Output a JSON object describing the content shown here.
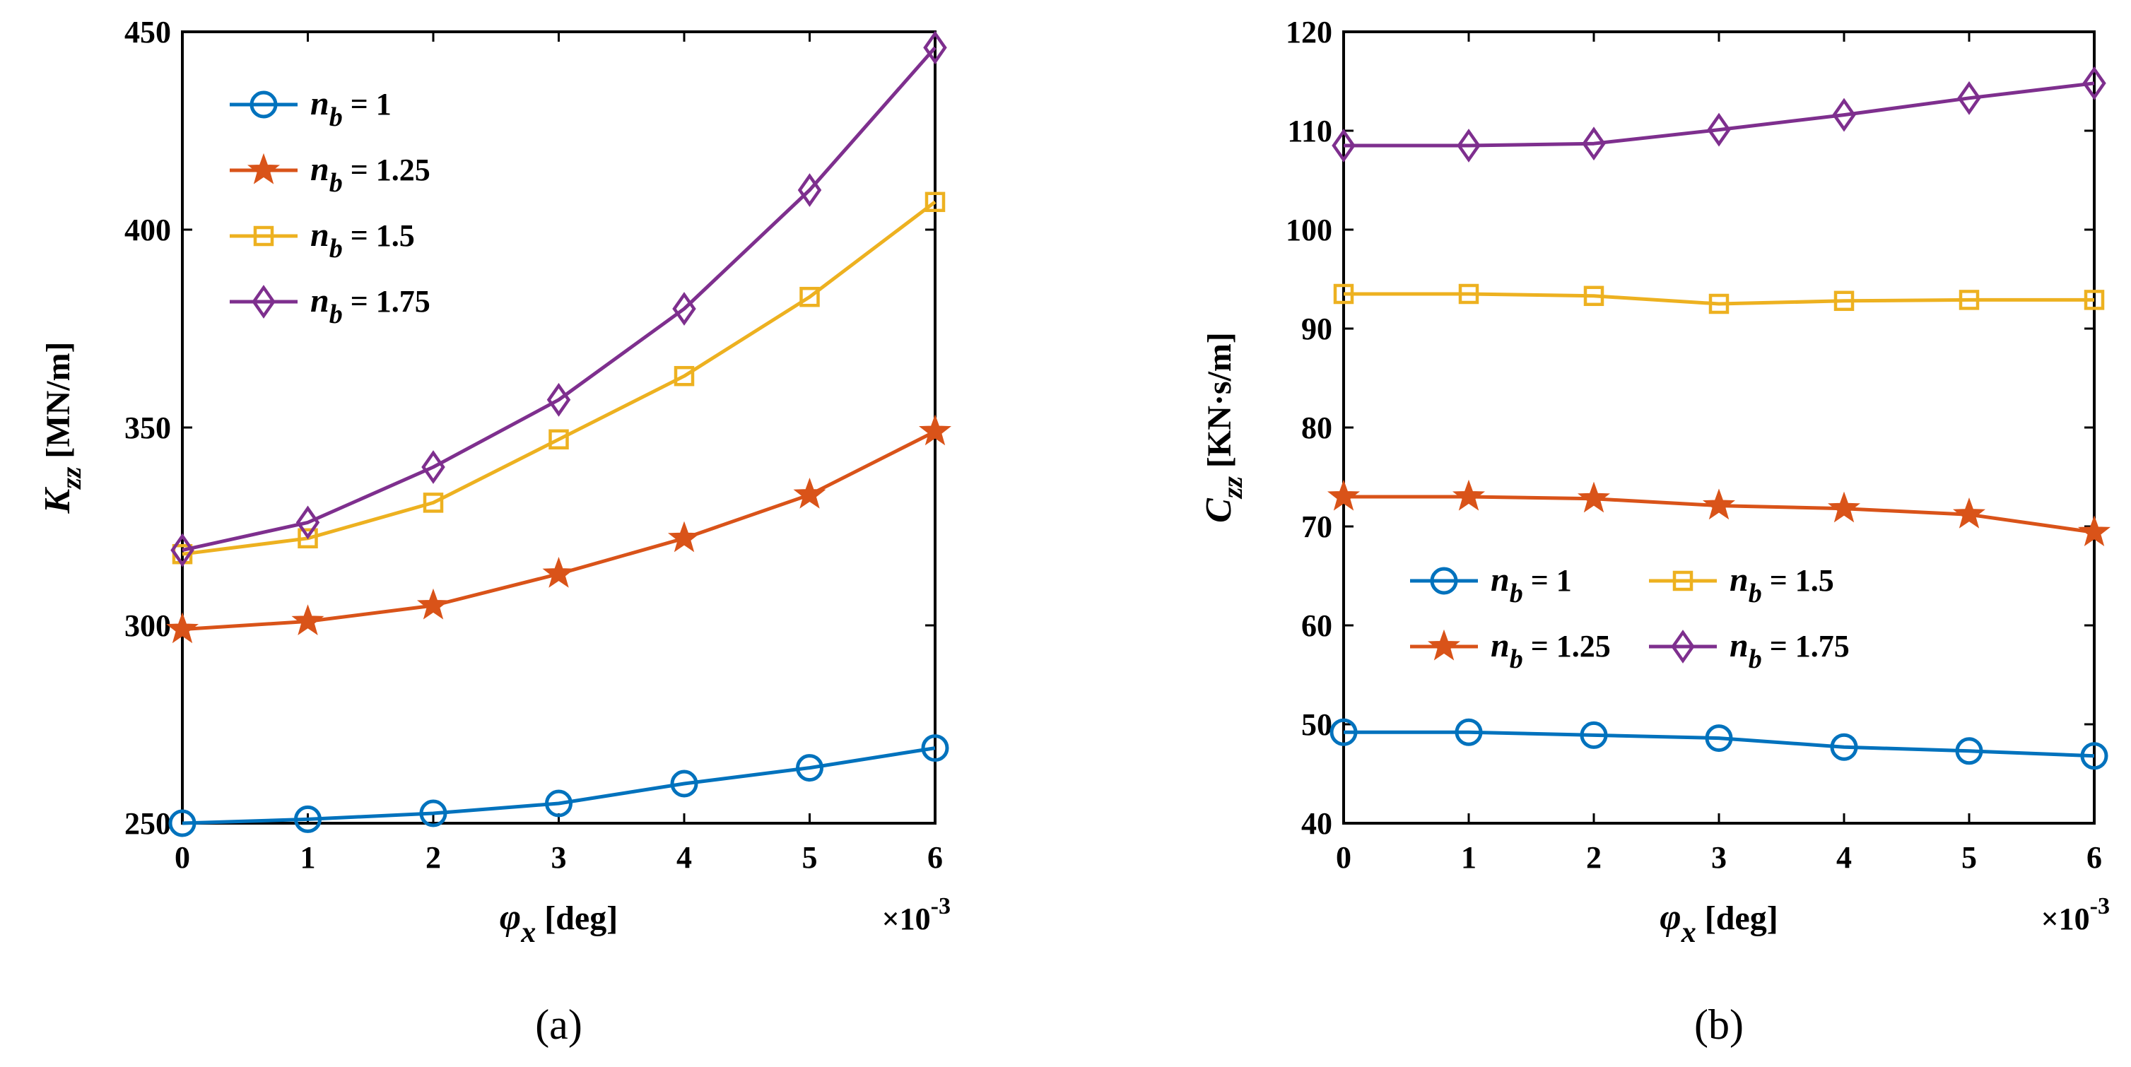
{
  "chart_data": [
    {
      "type": "line",
      "panel": "(a)",
      "x": [
        0,
        1,
        2,
        3,
        4,
        5,
        6
      ],
      "x_multiplier": "×10",
      "x_multiplier_exp": "-3",
      "xlabel": {
        "sym": "φ",
        "sub": "x",
        "unit": "[deg]"
      },
      "ylabel": {
        "sym": "K",
        "sub": "zz",
        "unit": "[MN/m]"
      },
      "xlim": [
        0,
        6
      ],
      "ylim": [
        250,
        450
      ],
      "xticks": [
        "0",
        "1",
        "2",
        "3",
        "4",
        "5",
        "6"
      ],
      "yticks": [
        "250",
        "300",
        "350",
        "400",
        "450"
      ],
      "legend_position": "top-left",
      "series": [
        {
          "name": "n_b = 1",
          "label_sym": "n",
          "label_sub": "b",
          "label_val": " = 1",
          "color": "#0072BD",
          "marker": "circle",
          "values": [
            250,
            251,
            252.5,
            255,
            260,
            264,
            269
          ]
        },
        {
          "name": "n_b = 1.25",
          "label_sym": "n",
          "label_sub": "b",
          "label_val": " = 1.25",
          "color": "#D95319",
          "marker": "star",
          "values": [
            299,
            301,
            305,
            313,
            322,
            333,
            349
          ]
        },
        {
          "name": "n_b = 1.5",
          "label_sym": "n",
          "label_sub": "b",
          "label_val": " = 1.5",
          "color": "#EDB120",
          "marker": "square",
          "values": [
            318,
            322,
            331,
            347,
            363,
            383,
            407
          ]
        },
        {
          "name": "n_b = 1.75",
          "label_sym": "n",
          "label_sub": "b",
          "label_val": " = 1.75",
          "color": "#7E2F8E",
          "marker": "diamond",
          "values": [
            319,
            326,
            340,
            357,
            380,
            410,
            446
          ]
        }
      ]
    },
    {
      "type": "line",
      "panel": "(b)",
      "x": [
        0,
        1,
        2,
        3,
        4,
        5,
        6
      ],
      "x_multiplier": "×10",
      "x_multiplier_exp": "-3",
      "xlabel": {
        "sym": "φ",
        "sub": "x",
        "unit": "[deg]"
      },
      "ylabel": {
        "sym": "C",
        "sub": "zz",
        "unit": "[KN·s/m]"
      },
      "xlim": [
        0,
        6
      ],
      "ylim": [
        40,
        120
      ],
      "xticks": [
        "0",
        "1",
        "2",
        "3",
        "4",
        "5",
        "6"
      ],
      "yticks": [
        "40",
        "50",
        "60",
        "70",
        "80",
        "90",
        "100",
        "110",
        "120"
      ],
      "legend_position": "center-left, two columns",
      "series": [
        {
          "name": "n_b = 1",
          "label_sym": "n",
          "label_sub": "b",
          "label_val": " = 1",
          "color": "#0072BD",
          "marker": "circle",
          "values": [
            49.2,
            49.2,
            48.9,
            48.6,
            47.7,
            47.3,
            46.8
          ]
        },
        {
          "name": "n_b = 1.25",
          "label_sym": "n",
          "label_sub": "b",
          "label_val": " = 1.25",
          "color": "#D95319",
          "marker": "star",
          "values": [
            73,
            73,
            72.8,
            72.1,
            71.8,
            71.2,
            69.4
          ]
        },
        {
          "name": "n_b = 1.5",
          "label_sym": "n",
          "label_sub": "b",
          "label_val": " = 1.5",
          "color": "#EDB120",
          "marker": "square",
          "values": [
            93.5,
            93.5,
            93.3,
            92.5,
            92.8,
            92.9,
            92.9
          ]
        },
        {
          "name": "n_b = 1.75",
          "label_sym": "n",
          "label_sub": "b",
          "label_val": " = 1.75",
          "color": "#7E2F8E",
          "marker": "diamond",
          "values": [
            108.5,
            108.5,
            108.7,
            110.1,
            111.6,
            113.3,
            114.8
          ]
        }
      ]
    }
  ]
}
